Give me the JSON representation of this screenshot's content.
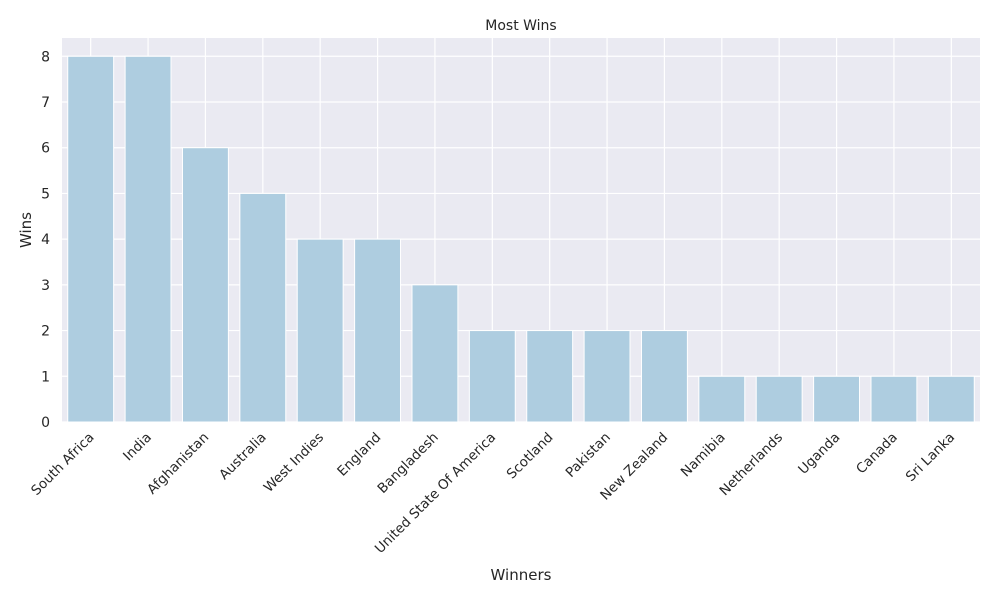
{
  "chart_data": {
    "type": "bar",
    "title": "Most Wins",
    "xlabel": "Winners",
    "ylabel": "Wins",
    "categories": [
      "South Africa",
      "India",
      "Afghanistan",
      "Australia",
      "West Indies",
      "England",
      "Bangladesh",
      "United State Of America",
      "Scotland",
      "Pakistan",
      "New Zealand",
      "Namibia",
      "Netherlands",
      "Uganda",
      "Canada",
      "Sri Lanka"
    ],
    "values": [
      8,
      8,
      6,
      5,
      4,
      4,
      3,
      2,
      2,
      2,
      2,
      1,
      1,
      1,
      1,
      1
    ],
    "yticks": [
      "0",
      "1",
      "2",
      "3",
      "4",
      "5",
      "6",
      "7",
      "8"
    ],
    "ylim": [
      0,
      8.4
    ],
    "grid": true,
    "colors": {
      "bar": "#aecde0",
      "background": "#eaeaf2",
      "grid": "#ffffff"
    }
  }
}
